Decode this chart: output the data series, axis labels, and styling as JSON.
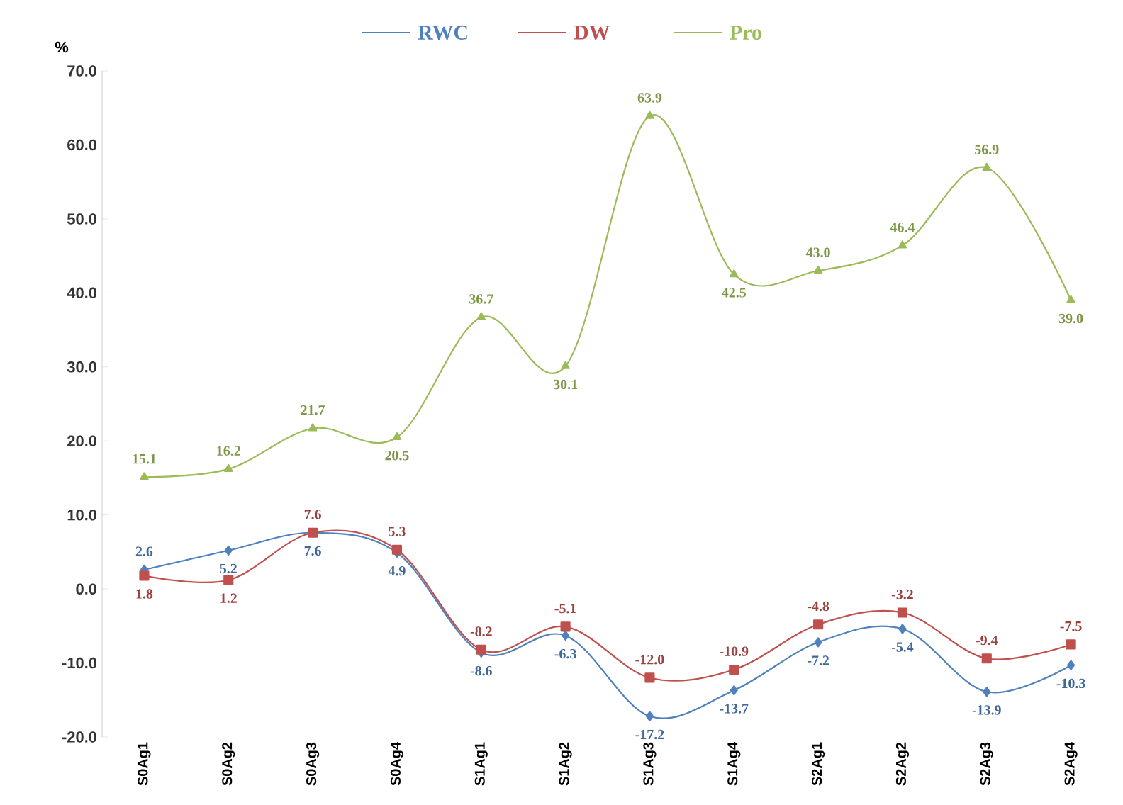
{
  "chart_data": {
    "type": "line",
    "ylabel": "%",
    "categories": [
      "S0Ag1",
      "S0Ag2",
      "S0Ag3",
      "S0Ag4",
      "S1Ag1",
      "S1Ag2",
      "S1Ag3",
      "S1Ag4",
      "S2Ag1",
      "S2Ag2",
      "S2Ag3",
      "S2Ag4"
    ],
    "series": [
      {
        "name": "RWC",
        "color": "#4f81bd",
        "marker": "diamond",
        "values": [
          2.6,
          5.2,
          7.6,
          4.9,
          -8.6,
          -6.3,
          -17.2,
          -13.7,
          -7.2,
          -5.4,
          -13.9,
          -10.3
        ],
        "value_labels": [
          "2.6",
          "5.2",
          "7.6",
          "4.9",
          "-8.6",
          "-6.3",
          "-17.2",
          "-13.7",
          "-7.2",
          "-5.4",
          "-13.9",
          "-10.3"
        ]
      },
      {
        "name": "DW",
        "color": "#c0504d",
        "marker": "square",
        "values": [
          1.8,
          1.2,
          7.6,
          5.3,
          -8.2,
          -5.1,
          -12.0,
          -10.9,
          -4.8,
          -3.2,
          -9.4,
          -7.5
        ],
        "value_labels": [
          "1.8",
          "1.2",
          "7.6",
          "5.3",
          "-8.2",
          "-5.1",
          "-12.0",
          "-10.9",
          "-4.8",
          "-3.2",
          "-9.4",
          "-7.5"
        ]
      },
      {
        "name": "Pro",
        "color": "#9bbb59",
        "marker": "triangle",
        "values": [
          15.1,
          16.2,
          21.7,
          20.5,
          36.7,
          30.1,
          63.9,
          42.5,
          43.0,
          46.4,
          56.9,
          39.0
        ],
        "value_labels": [
          "15.1",
          "16.2",
          "21.7",
          "20.5",
          "36.7",
          "30.1",
          "63.9",
          "42.5",
          "43.0",
          "46.4",
          "56.9",
          "39.0"
        ]
      }
    ],
    "ylim": [
      -20,
      70
    ],
    "yticks": [
      {
        "value": -20,
        "label": "-20.0"
      },
      {
        "value": -10,
        "label": "-10.0"
      },
      {
        "value": 0,
        "label": "0.0"
      },
      {
        "value": 10,
        "label": "10.0"
      },
      {
        "value": 20,
        "label": "20.0"
      },
      {
        "value": 30,
        "label": "30.0"
      },
      {
        "value": 40,
        "label": "40.0"
      },
      {
        "value": 50,
        "label": "50.0"
      },
      {
        "value": 60,
        "label": "60.0"
      },
      {
        "value": 70,
        "label": "70.0"
      }
    ],
    "legend": "top",
    "grid": false,
    "line_style": "solid"
  }
}
